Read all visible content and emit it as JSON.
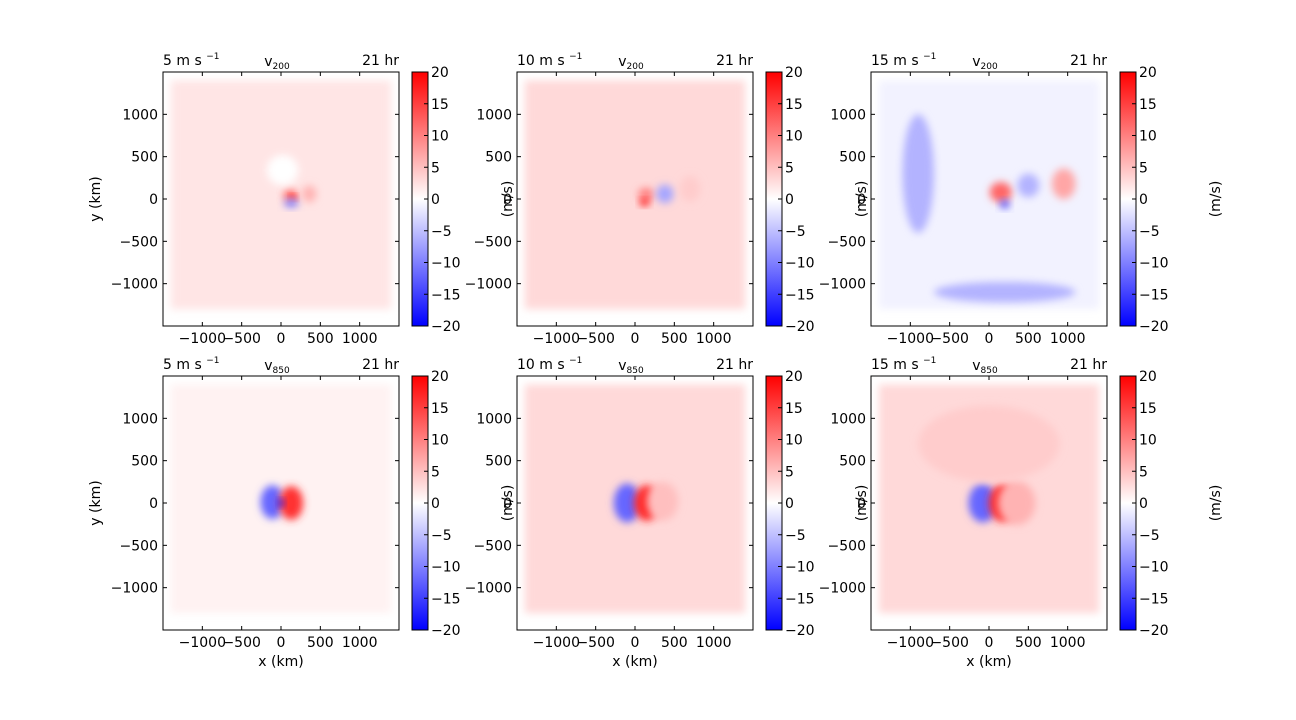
{
  "chart_data": {
    "type": "heatmap",
    "colormap": [
      "#0000ff",
      "#ffffff",
      "#ff0000"
    ],
    "x_ticks": [
      -1000,
      -500,
      0,
      500,
      1000
    ],
    "y_ticks": [
      1000,
      500,
      0,
      -500,
      -1000
    ],
    "x_tick_labels": [
      "−1000",
      "−500",
      "0",
      "500",
      "1000"
    ],
    "y_tick_labels": [
      "1000",
      "500",
      "0",
      "−500",
      "−1000"
    ],
    "xlim": [
      -1500,
      1500
    ],
    "ylim": [
      -1500,
      1500
    ],
    "cbar_ticks": [
      20,
      15,
      10,
      5,
      0,
      -5,
      -10,
      -15,
      -20
    ],
    "cbar_tick_labels": [
      "20",
      "15",
      "10",
      "5",
      "0",
      "−5",
      "−10",
      "−15",
      "−20"
    ],
    "cbar_range": [
      -20,
      20
    ],
    "cbar_label": "(m/s)",
    "xlabel": "x (km)",
    "ylabel": "y (km)",
    "panels": [
      {
        "row": 0,
        "col": 0,
        "shear": "5",
        "var": "v",
        "level": "200",
        "time": "21 hr",
        "background": 2,
        "features": [
          {
            "x": 120,
            "y": 40,
            "rx": 90,
            "ry": 70,
            "value": 12
          },
          {
            "x": 160,
            "y": 20,
            "rx": 40,
            "ry": 30,
            "value": 20
          },
          {
            "x": 130,
            "y": -50,
            "rx": 90,
            "ry": 50,
            "value": -10
          },
          {
            "x": 360,
            "y": 60,
            "rx": 90,
            "ry": 100,
            "value": 6
          },
          {
            "x": 20,
            "y": 340,
            "rx": 200,
            "ry": 180,
            "value": 0
          }
        ]
      },
      {
        "row": 0,
        "col": 1,
        "shear": "10",
        "var": "v",
        "level": "200",
        "time": "21 hr",
        "background": 3,
        "features": [
          {
            "x": 140,
            "y": 50,
            "rx": 100,
            "ry": 80,
            "value": 10
          },
          {
            "x": 120,
            "y": -40,
            "rx": 60,
            "ry": 40,
            "value": 20
          },
          {
            "x": 380,
            "y": 60,
            "rx": 110,
            "ry": 110,
            "value": -7
          },
          {
            "x": 700,
            "y": 120,
            "rx": 130,
            "ry": 150,
            "value": 4
          }
        ]
      },
      {
        "row": 0,
        "col": 2,
        "shear": "15",
        "var": "v",
        "level": "200",
        "time": "21 hr",
        "background": -1,
        "features": [
          {
            "x": 150,
            "y": 80,
            "rx": 140,
            "ry": 120,
            "value": 12
          },
          {
            "x": 200,
            "y": -60,
            "rx": 60,
            "ry": 50,
            "value": -14
          },
          {
            "x": 500,
            "y": 160,
            "rx": 140,
            "ry": 140,
            "value": -6
          },
          {
            "x": 950,
            "y": 180,
            "rx": 150,
            "ry": 180,
            "value": 7
          },
          {
            "x": -900,
            "y": 300,
            "rx": 200,
            "ry": 700,
            "value": -6
          },
          {
            "x": 200,
            "y": -1100,
            "rx": 900,
            "ry": 120,
            "value": -6
          }
        ]
      },
      {
        "row": 1,
        "col": 0,
        "shear": "5",
        "var": "v",
        "level": "850",
        "time": "21 hr",
        "background": 1,
        "features": [
          {
            "x": -110,
            "y": 10,
            "rx": 150,
            "ry": 200,
            "value": -12
          },
          {
            "x": 130,
            "y": 0,
            "rx": 150,
            "ry": 200,
            "value": 16
          },
          {
            "x": 0,
            "y": 0,
            "rx": 40,
            "ry": 40,
            "value": -20
          }
        ]
      },
      {
        "row": 1,
        "col": 1,
        "shear": "10",
        "var": "v",
        "level": "850",
        "time": "21 hr",
        "background": 3,
        "features": [
          {
            "x": -100,
            "y": 0,
            "rx": 170,
            "ry": 230,
            "value": -12
          },
          {
            "x": 150,
            "y": 0,
            "rx": 160,
            "ry": 210,
            "value": 17
          },
          {
            "x": 350,
            "y": 20,
            "rx": 200,
            "ry": 230,
            "value": 5
          }
        ]
      },
      {
        "row": 1,
        "col": 2,
        "shear": "15",
        "var": "v",
        "level": "850",
        "time": "21 hr",
        "background": 3,
        "features": [
          {
            "x": -80,
            "y": 0,
            "rx": 180,
            "ry": 230,
            "value": -12
          },
          {
            "x": 170,
            "y": 0,
            "rx": 170,
            "ry": 220,
            "value": 17
          },
          {
            "x": 350,
            "y": 0,
            "rx": 240,
            "ry": 260,
            "value": 6
          },
          {
            "x": 0,
            "y": 700,
            "rx": 900,
            "ry": 450,
            "value": 4
          }
        ]
      }
    ],
    "shear_unit": "m s",
    "shear_exp": "−1"
  }
}
